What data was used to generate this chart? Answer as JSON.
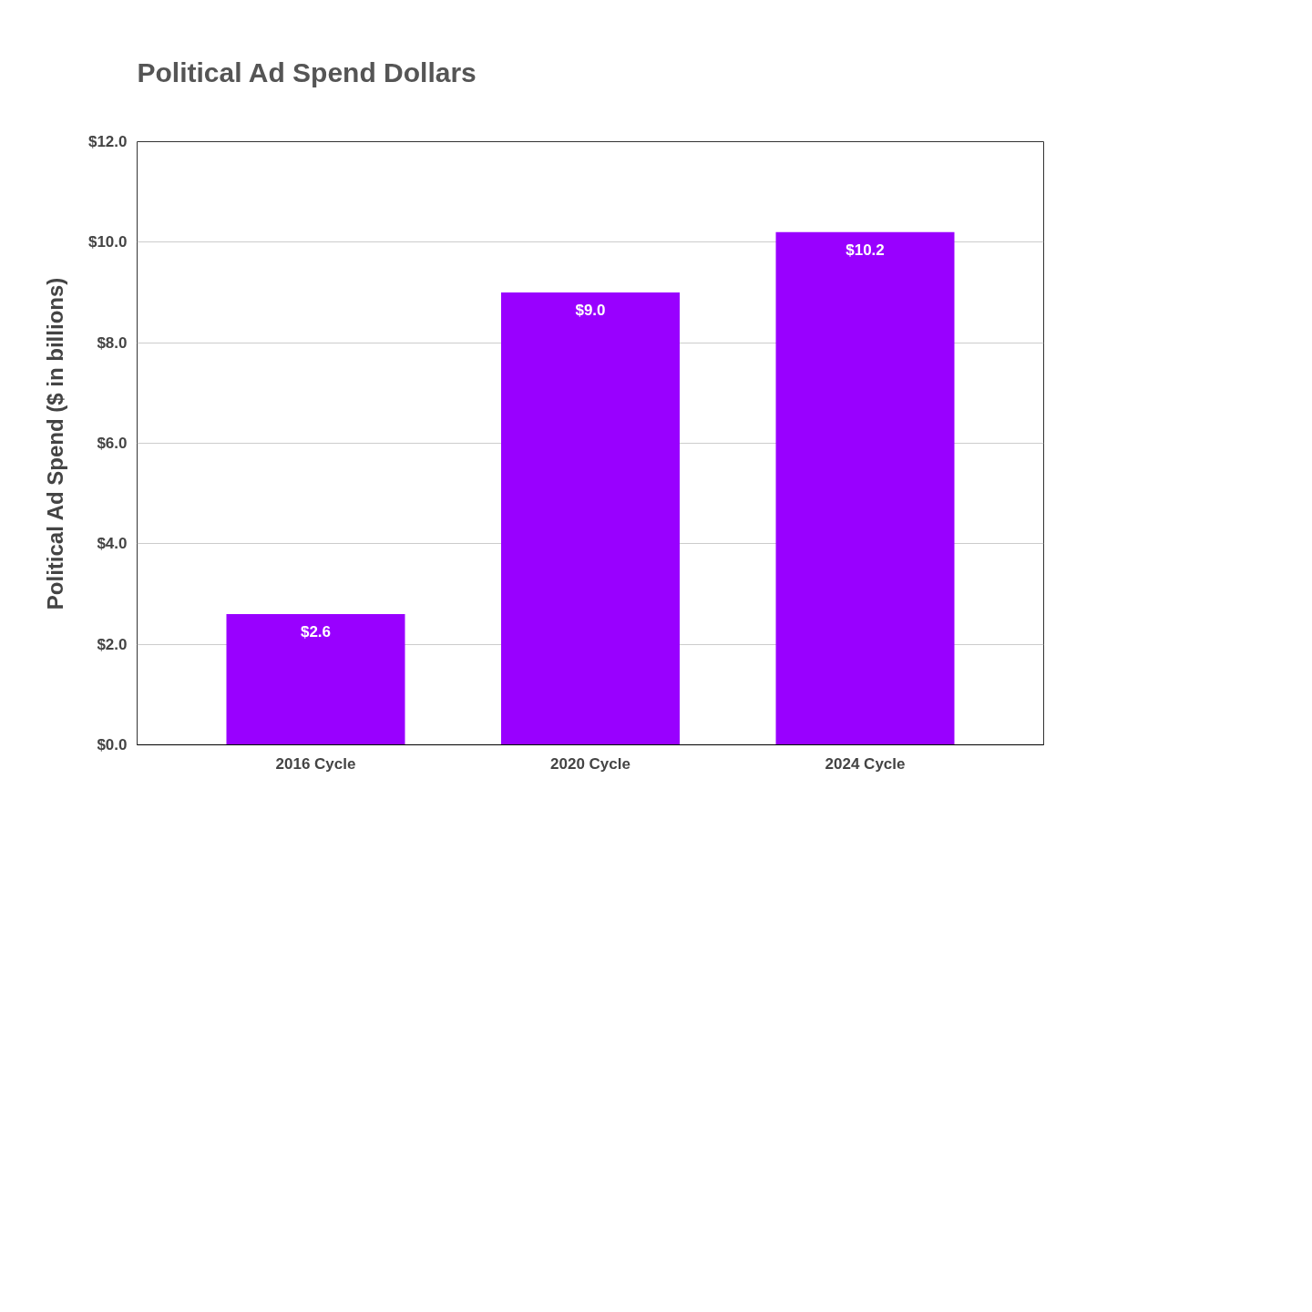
{
  "chart_data": {
    "type": "bar",
    "title": "Political Ad Spend Dollars",
    "ylabel": "Political Ad Spend ($ in billions)",
    "categories": [
      "2016 Cycle",
      "2020 Cycle",
      "2024 Cycle"
    ],
    "values": [
      2.6,
      9.0,
      10.2
    ],
    "value_labels": [
      "$2.6",
      "$9.0",
      "$10.2"
    ],
    "color": "#9900ff",
    "ylim": [
      0,
      12
    ],
    "yticks": [
      {
        "value": 0,
        "label": "$0.0"
      },
      {
        "value": 2,
        "label": "$2.0"
      },
      {
        "value": 4,
        "label": "$4.0"
      },
      {
        "value": 6,
        "label": "$6.0"
      },
      {
        "value": 8,
        "label": "$8.0"
      },
      {
        "value": 10,
        "label": "$10.0"
      },
      {
        "value": 12,
        "label": "$12.0"
      }
    ],
    "grid": "y"
  }
}
